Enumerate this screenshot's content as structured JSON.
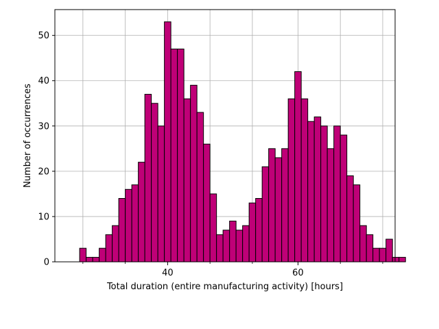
{
  "chart_data": {
    "type": "bar",
    "subtype": "histogram",
    "title": "",
    "xlabel": "Total duration (entire manufacturing  activity) [hours]",
    "ylabel": "Number of occurrences",
    "bin_start": 26.5,
    "bin_width": 1.0,
    "counts": [
      3,
      1,
      1,
      3,
      6,
      8,
      14,
      16,
      17,
      22,
      37,
      35,
      30,
      53,
      47,
      47,
      36,
      39,
      33,
      26,
      15,
      6,
      7,
      9,
      7,
      8,
      13,
      14,
      21,
      25,
      23,
      25,
      36,
      42,
      36,
      31,
      32,
      30,
      25,
      30,
      28,
      19,
      17,
      8,
      6,
      3,
      3,
      5,
      1,
      1
    ],
    "xlim": [
      22.7,
      74.9
    ],
    "ylim": [
      0,
      55.7
    ],
    "x_major_ticks": [
      40,
      60
    ],
    "x_minor_ticks": [
      27,
      33.5,
      46.5,
      53,
      66.5,
      73
    ],
    "y_ticks": [
      0,
      10,
      20,
      30,
      40,
      50
    ],
    "grid": true,
    "bar_color": "#bf0077",
    "edge_color": "#000000",
    "grid_color": "#b0b0b0"
  }
}
